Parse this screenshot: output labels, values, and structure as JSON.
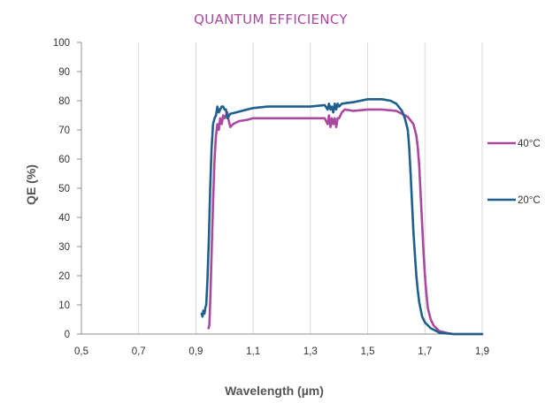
{
  "chart_data": {
    "type": "line",
    "title": "QUANTUM EFFICIENCY",
    "xlabel": "Wavelength (µm)",
    "ylabel": "QE (%)",
    "xlim": [
      0.5,
      1.9
    ],
    "ylim": [
      0,
      100
    ],
    "x_ticks": [
      "0,5",
      "0,7",
      "0,9",
      "1,1",
      "1,3",
      "1,5",
      "1,7",
      "1,9"
    ],
    "y_ticks": [
      "0",
      "10",
      "20",
      "30",
      "40",
      "50",
      "60",
      "70",
      "80",
      "90",
      "100"
    ],
    "grid": "vertical",
    "legend_position": "right",
    "series": [
      {
        "name": "40°C",
        "color": "#a9489e",
        "points": [
          [
            0.944,
            2
          ],
          [
            0.947,
            3
          ],
          [
            0.948,
            6
          ],
          [
            0.951,
            14
          ],
          [
            0.955,
            28
          ],
          [
            0.96,
            45
          ],
          [
            0.965,
            60
          ],
          [
            0.97,
            68
          ],
          [
            0.975,
            72
          ],
          [
            0.98,
            70
          ],
          [
            0.985,
            74
          ],
          [
            0.99,
            72
          ],
          [
            0.995,
            75
          ],
          [
            1.0,
            74
          ],
          [
            1.005,
            75
          ],
          [
            1.01,
            76
          ],
          [
            1.015,
            73
          ],
          [
            1.02,
            71
          ],
          [
            1.03,
            72
          ],
          [
            1.05,
            73
          ],
          [
            1.08,
            73.5
          ],
          [
            1.1,
            74
          ],
          [
            1.15,
            74
          ],
          [
            1.2,
            74
          ],
          [
            1.25,
            74
          ],
          [
            1.3,
            74
          ],
          [
            1.35,
            74
          ],
          [
            1.36,
            72
          ],
          [
            1.365,
            75
          ],
          [
            1.37,
            71
          ],
          [
            1.375,
            74
          ],
          [
            1.38,
            72
          ],
          [
            1.385,
            74
          ],
          [
            1.39,
            71
          ],
          [
            1.395,
            74
          ],
          [
            1.4,
            74
          ],
          [
            1.41,
            76
          ],
          [
            1.42,
            77
          ],
          [
            1.45,
            76.5
          ],
          [
            1.5,
            77
          ],
          [
            1.55,
            77
          ],
          [
            1.6,
            76.5
          ],
          [
            1.62,
            75.5
          ],
          [
            1.64,
            74.5
          ],
          [
            1.66,
            72
          ],
          [
            1.67,
            68
          ],
          [
            1.675,
            64
          ],
          [
            1.68,
            58
          ],
          [
            1.685,
            48
          ],
          [
            1.69,
            38
          ],
          [
            1.695,
            28
          ],
          [
            1.7,
            20
          ],
          [
            1.705,
            14
          ],
          [
            1.71,
            9
          ],
          [
            1.72,
            5
          ],
          [
            1.73,
            3
          ],
          [
            1.75,
            1
          ],
          [
            1.78,
            0.3
          ],
          [
            1.8,
            0
          ],
          [
            1.9,
            0
          ]
        ]
      },
      {
        "name": "20°C",
        "color": "#1e5f8e",
        "points": [
          [
            0.92,
            7
          ],
          [
            0.923,
            6
          ],
          [
            0.926,
            8
          ],
          [
            0.93,
            7
          ],
          [
            0.933,
            9
          ],
          [
            0.936,
            10
          ],
          [
            0.94,
            18
          ],
          [
            0.945,
            32
          ],
          [
            0.95,
            50
          ],
          [
            0.955,
            64
          ],
          [
            0.96,
            72
          ],
          [
            0.965,
            74
          ],
          [
            0.97,
            75
          ],
          [
            0.975,
            78
          ],
          [
            0.98,
            76
          ],
          [
            0.985,
            77
          ],
          [
            0.99,
            78
          ],
          [
            0.995,
            78
          ],
          [
            1.0,
            77
          ],
          [
            1.005,
            77
          ],
          [
            1.01,
            74
          ],
          [
            1.02,
            75.5
          ],
          [
            1.04,
            76
          ],
          [
            1.06,
            76.5
          ],
          [
            1.1,
            77.5
          ],
          [
            1.15,
            78
          ],
          [
            1.2,
            78
          ],
          [
            1.25,
            78
          ],
          [
            1.3,
            78
          ],
          [
            1.35,
            78.5
          ],
          [
            1.36,
            77
          ],
          [
            1.365,
            79
          ],
          [
            1.37,
            77
          ],
          [
            1.375,
            78
          ],
          [
            1.38,
            76
          ],
          [
            1.385,
            79
          ],
          [
            1.39,
            77
          ],
          [
            1.395,
            79
          ],
          [
            1.4,
            78
          ],
          [
            1.41,
            79
          ],
          [
            1.45,
            79.5
          ],
          [
            1.5,
            80.5
          ],
          [
            1.55,
            80.5
          ],
          [
            1.58,
            80
          ],
          [
            1.6,
            79
          ],
          [
            1.62,
            76.5
          ],
          [
            1.63,
            74
          ],
          [
            1.64,
            70
          ],
          [
            1.645,
            64
          ],
          [
            1.65,
            55
          ],
          [
            1.655,
            45
          ],
          [
            1.66,
            35
          ],
          [
            1.665,
            27
          ],
          [
            1.67,
            20
          ],
          [
            1.675,
            15
          ],
          [
            1.68,
            11
          ],
          [
            1.69,
            6
          ],
          [
            1.7,
            4
          ],
          [
            1.72,
            2
          ],
          [
            1.75,
            0.5
          ],
          [
            1.8,
            0
          ],
          [
            1.9,
            0
          ]
        ]
      }
    ]
  }
}
